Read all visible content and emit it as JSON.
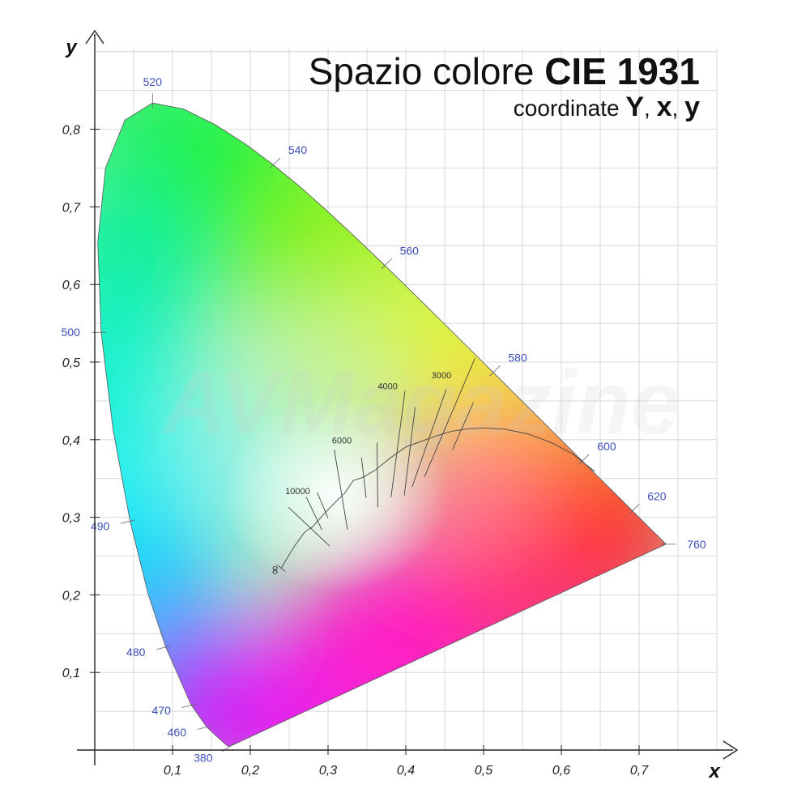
{
  "title": {
    "prefix": "Spazio colore",
    "bold": "CIE 1931"
  },
  "subtitle": {
    "prefix": "coordinate",
    "parts": [
      "Y",
      "x",
      "y"
    ],
    "separator": ", "
  },
  "axes": {
    "x": {
      "name": "x",
      "ticks": [
        "0,1",
        "0,2",
        "0,3",
        "0,4",
        "0,5",
        "0,6",
        "0,7"
      ],
      "values": [
        0.1,
        0.2,
        0.3,
        0.4,
        0.5,
        0.6,
        0.7
      ],
      "range": [
        0,
        0.8
      ]
    },
    "y": {
      "name": "y",
      "ticks": [
        "0,1",
        "0,2",
        "0,3",
        "0,4",
        "0,5",
        "0,6",
        "0,7",
        "0,8"
      ],
      "values": [
        0.1,
        0.2,
        0.3,
        0.4,
        0.5,
        0.6,
        0.7,
        0.8
      ],
      "range": [
        0,
        0.9
      ]
    },
    "grid": true
  },
  "chart_data": {
    "type": "diagram",
    "spectral_locus": [
      [
        0.1741,
        0.005
      ],
      [
        0.1738,
        0.0049
      ],
      [
        0.1733,
        0.0048
      ],
      [
        0.1726,
        0.0048
      ],
      [
        0.1714,
        0.0051
      ],
      [
        0.1689,
        0.0069
      ],
      [
        0.1644,
        0.0109
      ],
      [
        0.1566,
        0.0177
      ],
      [
        0.144,
        0.0297
      ],
      [
        0.1241,
        0.0578
      ],
      [
        0.0913,
        0.1327
      ],
      [
        0.0687,
        0.2007
      ],
      [
        0.0454,
        0.295
      ],
      [
        0.0235,
        0.4127
      ],
      [
        0.0082,
        0.5384
      ],
      [
        0.0039,
        0.6548
      ],
      [
        0.0139,
        0.7502
      ],
      [
        0.0389,
        0.812
      ],
      [
        0.0743,
        0.8338
      ],
      [
        0.1142,
        0.8262
      ],
      [
        0.1547,
        0.8059
      ],
      [
        0.1929,
        0.7816
      ],
      [
        0.2296,
        0.7543
      ],
      [
        0.2658,
        0.7243
      ],
      [
        0.3016,
        0.6923
      ],
      [
        0.3373,
        0.6589
      ],
      [
        0.3731,
        0.6245
      ],
      [
        0.4087,
        0.5896
      ],
      [
        0.4441,
        0.5547
      ],
      [
        0.4788,
        0.5202
      ],
      [
        0.5125,
        0.4866
      ],
      [
        0.5448,
        0.4544
      ],
      [
        0.5752,
        0.4242
      ],
      [
        0.6029,
        0.3965
      ],
      [
        0.627,
        0.3725
      ],
      [
        0.6482,
        0.3514
      ],
      [
        0.6658,
        0.334
      ],
      [
        0.6801,
        0.3197
      ],
      [
        0.6915,
        0.3083
      ],
      [
        0.7006,
        0.2993
      ],
      [
        0.7079,
        0.292
      ],
      [
        0.714,
        0.2859
      ],
      [
        0.719,
        0.2809
      ],
      [
        0.723,
        0.277
      ],
      [
        0.726,
        0.274
      ],
      [
        0.7283,
        0.2717
      ],
      [
        0.73,
        0.27
      ],
      [
        0.7347,
        0.2653
      ]
    ],
    "wavelength_markers": [
      {
        "label": "380",
        "x": 0.1741,
        "y": 0.005,
        "dx": -0.03,
        "dy": -0.02
      },
      {
        "label": "460",
        "x": 0.144,
        "y": 0.0297,
        "dx": -0.04,
        "dy": -0.01
      },
      {
        "label": "470",
        "x": 0.1241,
        "y": 0.0578,
        "dx": -0.04,
        "dy": -0.01
      },
      {
        "label": "480",
        "x": 0.0913,
        "y": 0.1327,
        "dx": -0.04,
        "dy": -0.01
      },
      {
        "label": "490",
        "x": 0.0454,
        "y": 0.295,
        "dx": -0.04,
        "dy": -0.01
      },
      {
        "label": "500",
        "x": 0.0082,
        "y": 0.5384,
        "dx": -0.04,
        "dy": 0.0
      },
      {
        "label": "520",
        "x": 0.0743,
        "y": 0.8338,
        "dx": 0.0,
        "dy": 0.03
      },
      {
        "label": "540",
        "x": 0.2296,
        "y": 0.7543,
        "dx": 0.03,
        "dy": 0.03
      },
      {
        "label": "560",
        "x": 0.3731,
        "y": 0.6245,
        "dx": 0.03,
        "dy": 0.03
      },
      {
        "label": "580",
        "x": 0.5125,
        "y": 0.4866,
        "dx": 0.03,
        "dy": 0.03
      },
      {
        "label": "600",
        "x": 0.627,
        "y": 0.3725,
        "dx": 0.03,
        "dy": 0.03
      },
      {
        "label": "620",
        "x": 0.6915,
        "y": 0.3083,
        "dx": 0.03,
        "dy": 0.03
      },
      {
        "label": "760",
        "x": 0.7347,
        "y": 0.2653,
        "dx": 0.03,
        "dy": 0.0
      }
    ],
    "planckian_locus": [
      [
        0.2399,
        0.2343
      ],
      [
        0.247,
        0.2467
      ],
      [
        0.257,
        0.263
      ],
      [
        0.27,
        0.281
      ],
      [
        0.2807,
        0.2883
      ],
      [
        0.2952,
        0.3048
      ],
      [
        0.3135,
        0.3237
      ],
      [
        0.3221,
        0.3318
      ],
      [
        0.3324,
        0.3474
      ],
      [
        0.3451,
        0.3516
      ],
      [
        0.3608,
        0.3609
      ],
      [
        0.3805,
        0.3768
      ],
      [
        0.4003,
        0.3907
      ],
      [
        0.4369,
        0.4041
      ],
      [
        0.4589,
        0.4109
      ],
      [
        0.4804,
        0.414
      ],
      [
        0.5002,
        0.415
      ],
      [
        0.5263,
        0.4137
      ],
      [
        0.5564,
        0.4076
      ],
      [
        0.5857,
        0.3969
      ],
      [
        0.614,
        0.382
      ],
      [
        0.643,
        0.359
      ]
    ],
    "isotherms": [
      {
        "x1": 0.249,
        "y1": 0.313,
        "x2": 0.302,
        "y2": 0.263
      },
      {
        "x1": 0.272,
        "y1": 0.326,
        "x2": 0.292,
        "y2": 0.284
      },
      {
        "x1": 0.286,
        "y1": 0.332,
        "x2": 0.3,
        "y2": 0.299
      },
      {
        "x1": 0.308,
        "y1": 0.387,
        "x2": 0.325,
        "y2": 0.284
      },
      {
        "x1": 0.343,
        "y1": 0.377,
        "x2": 0.349,
        "y2": 0.325
      },
      {
        "x1": 0.363,
        "y1": 0.396,
        "x2": 0.364,
        "y2": 0.313
      },
      {
        "x1": 0.399,
        "y1": 0.463,
        "x2": 0.381,
        "y2": 0.326
      },
      {
        "x1": 0.412,
        "y1": 0.442,
        "x2": 0.398,
        "y2": 0.328
      },
      {
        "x1": 0.452,
        "y1": 0.465,
        "x2": 0.408,
        "y2": 0.339
      },
      {
        "x1": 0.489,
        "y1": 0.505,
        "x2": 0.424,
        "y2": 0.352
      },
      {
        "x1": 0.487,
        "y1": 0.448,
        "x2": 0.46,
        "y2": 0.387
      }
    ],
    "cct_labels": [
      {
        "text": "10000",
        "x": 0.245,
        "y": 0.33
      },
      {
        "text": "6000",
        "x": 0.305,
        "y": 0.395
      },
      {
        "text": "4000",
        "x": 0.364,
        "y": 0.465
      },
      {
        "text": "3000",
        "x": 0.433,
        "y": 0.479
      }
    ],
    "infinity_label": {
      "text": "∞",
      "x": 0.237,
      "y": 0.225
    }
  },
  "watermark": {
    "text": "AVMagazine",
    "color": "#cccccc"
  }
}
